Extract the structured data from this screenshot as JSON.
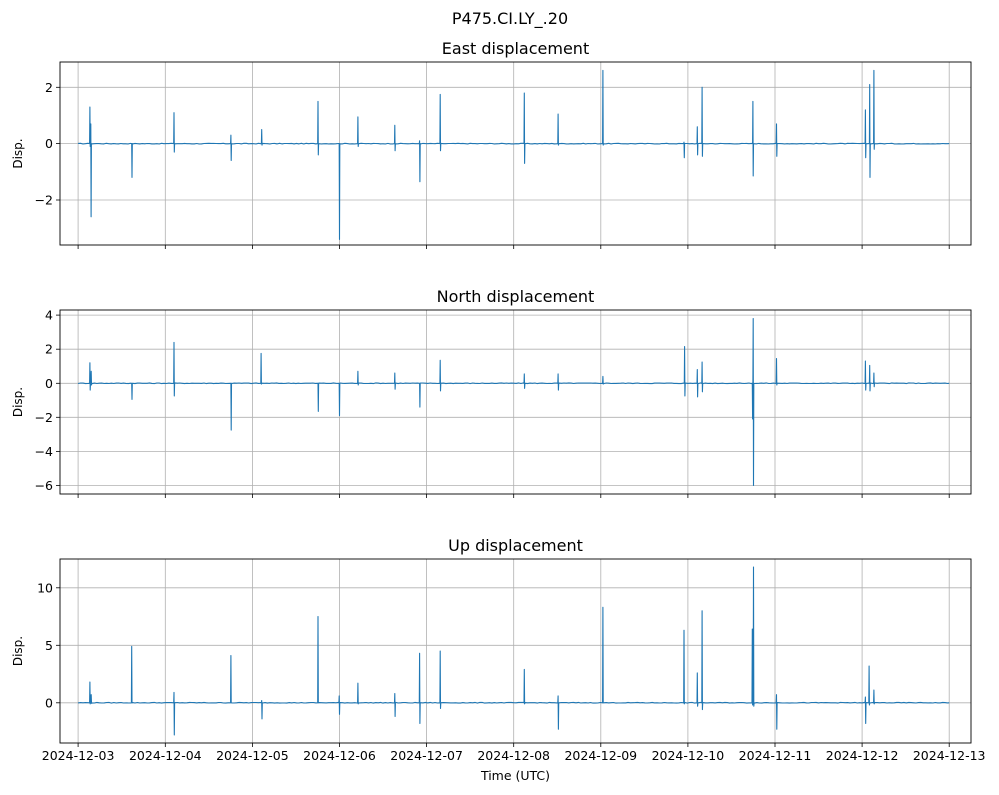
{
  "figure": {
    "title": "P475.CI.LY_.20",
    "line_color": "#1f77b4",
    "grid_color": "#b0b0b0"
  },
  "chart_data": [
    {
      "type": "line",
      "title": "East displacement",
      "xlabel": "",
      "ylabel": "Disp.",
      "grid": true,
      "xlim": [
        "2024-12-02T19:00",
        "2024-12-13T06:00"
      ],
      "ylim": [
        -3.6,
        2.9
      ],
      "yticks": [
        -2,
        0,
        2
      ],
      "ytick_labels": [
        "−2",
        "0",
        "2"
      ],
      "xticks": [
        "2024-12-03",
        "2024-12-04",
        "2024-12-05",
        "2024-12-06",
        "2024-12-07",
        "2024-12-08",
        "2024-12-09",
        "2024-12-10",
        "2024-12-11",
        "2024-12-12",
        "2024-12-13"
      ],
      "series": [
        {
          "x_start": "2024-12-03T00:00",
          "x_end": "2024-12-13T00:00",
          "baseline": 0.0,
          "events": [
            [
              "2024-12-03T03:10",
              1.3,
              -0.1
            ],
            [
              "2024-12-03T03:25",
              0.7,
              -2.6
            ],
            [
              "2024-12-03T14:40",
              0.0,
              -1.2
            ],
            [
              "2024-12-04T02:20",
              1.1,
              -0.3
            ],
            [
              "2024-12-04T18:00",
              0.3,
              -0.6
            ],
            [
              "2024-12-05T02:30",
              0.5,
              -0.05
            ],
            [
              "2024-12-05T18:00",
              1.5,
              -0.4
            ],
            [
              "2024-12-05T23:50",
              0.0,
              -3.4
            ],
            [
              "2024-12-06T05:00",
              0.95,
              -0.1
            ],
            [
              "2024-12-06T15:10",
              0.65,
              -0.25
            ],
            [
              "2024-12-06T22:00",
              0.1,
              -1.35
            ],
            [
              "2024-12-07T03:40",
              1.75,
              -0.25
            ],
            [
              "2024-12-08T02:50",
              1.8,
              -0.7
            ],
            [
              "2024-12-08T12:10",
              1.05,
              -0.05
            ],
            [
              "2024-12-09T00:30",
              2.6,
              -0.05
            ],
            [
              "2024-12-09T22:50",
              0.05,
              -0.5
            ],
            [
              "2024-12-10T02:30",
              0.6,
              -0.4
            ],
            [
              "2024-12-10T03:50",
              2.0,
              -0.45
            ],
            [
              "2024-12-10T17:50",
              1.5,
              -1.15
            ],
            [
              "2024-12-11T00:20",
              0.7,
              -0.45
            ],
            [
              "2024-12-12T00:50",
              1.2,
              -0.5
            ],
            [
              "2024-12-12T02:00",
              2.1,
              -1.2
            ],
            [
              "2024-12-12T03:10",
              2.6,
              -0.2
            ]
          ]
        }
      ]
    },
    {
      "type": "line",
      "title": "North displacement",
      "xlabel": "",
      "ylabel": "Disp.",
      "grid": true,
      "xlim": [
        "2024-12-02T19:00",
        "2024-12-13T06:00"
      ],
      "ylim": [
        -6.5,
        4.3
      ],
      "yticks": [
        -6,
        -4,
        -2,
        0,
        2,
        4
      ],
      "ytick_labels": [
        "−6",
        "−4",
        "−2",
        "0",
        "2",
        "4"
      ],
      "xticks": [
        "2024-12-03",
        "2024-12-04",
        "2024-12-05",
        "2024-12-06",
        "2024-12-07",
        "2024-12-08",
        "2024-12-09",
        "2024-12-10",
        "2024-12-11",
        "2024-12-12",
        "2024-12-13"
      ],
      "series": [
        {
          "x_start": "2024-12-03T00:00",
          "x_end": "2024-12-13T00:00",
          "baseline": 0.0,
          "events": [
            [
              "2024-12-03T03:10",
              1.2,
              -0.4
            ],
            [
              "2024-12-03T03:30",
              0.7,
              -0.1
            ],
            [
              "2024-12-03T14:40",
              0.0,
              -0.95
            ],
            [
              "2024-12-04T02:20",
              2.4,
              -0.75
            ],
            [
              "2024-12-04T18:00",
              0.0,
              -2.75
            ],
            [
              "2024-12-05T02:20",
              1.75,
              -0.05
            ],
            [
              "2024-12-05T18:00",
              0.0,
              -1.65
            ],
            [
              "2024-12-05T23:50",
              0.0,
              -1.9
            ],
            [
              "2024-12-06T05:00",
              0.7,
              -0.1
            ],
            [
              "2024-12-06T15:10",
              0.6,
              -0.35
            ],
            [
              "2024-12-06T22:00",
              0.0,
              -1.4
            ],
            [
              "2024-12-07T03:40",
              1.35,
              -0.45
            ],
            [
              "2024-12-08T02:50",
              0.55,
              -0.3
            ],
            [
              "2024-12-08T12:10",
              0.55,
              -0.4
            ],
            [
              "2024-12-09T00:30",
              0.4,
              -0.05
            ],
            [
              "2024-12-09T23:00",
              2.15,
              -0.75
            ],
            [
              "2024-12-10T02:30",
              0.8,
              -0.8
            ],
            [
              "2024-12-10T03:50",
              1.25,
              -0.5
            ],
            [
              "2024-12-10T17:40",
              0.0,
              -2.1
            ],
            [
              "2024-12-10T17:55",
              3.8,
              -6.0
            ],
            [
              "2024-12-11T00:20",
              1.45,
              -0.1
            ],
            [
              "2024-12-12T00:50",
              1.3,
              -0.4
            ],
            [
              "2024-12-12T02:00",
              1.05,
              -0.45
            ],
            [
              "2024-12-12T03:10",
              0.6,
              -0.2
            ]
          ]
        }
      ]
    },
    {
      "type": "line",
      "title": "Up displacement",
      "xlabel": "Time (UTC)",
      "ylabel": "Disp.",
      "grid": true,
      "xlim": [
        "2024-12-02T19:00",
        "2024-12-13T06:00"
      ],
      "ylim": [
        -3.5,
        12.5
      ],
      "yticks": [
        0,
        5,
        10
      ],
      "ytick_labels": [
        "0",
        "5",
        "10"
      ],
      "xticks": [
        "2024-12-03",
        "2024-12-04",
        "2024-12-05",
        "2024-12-06",
        "2024-12-07",
        "2024-12-08",
        "2024-12-09",
        "2024-12-10",
        "2024-12-11",
        "2024-12-12",
        "2024-12-13"
      ],
      "series": [
        {
          "x_start": "2024-12-03T00:00",
          "x_end": "2024-12-13T00:00",
          "baseline": 0.0,
          "events": [
            [
              "2024-12-03T03:10",
              1.8,
              -0.1
            ],
            [
              "2024-12-03T03:30",
              0.7,
              -0.05
            ],
            [
              "2024-12-03T14:40",
              4.9,
              0.0
            ],
            [
              "2024-12-04T02:20",
              0.9,
              -2.8
            ],
            [
              "2024-12-04T18:00",
              4.1,
              0.0
            ],
            [
              "2024-12-05T02:30",
              0.2,
              -1.4
            ],
            [
              "2024-12-05T18:00",
              7.5,
              0.0
            ],
            [
              "2024-12-05T23:50",
              0.6,
              -1.0
            ],
            [
              "2024-12-06T05:00",
              1.7,
              -0.1
            ],
            [
              "2024-12-06T15:10",
              0.8,
              -1.2
            ],
            [
              "2024-12-06T22:00",
              4.3,
              -1.8
            ],
            [
              "2024-12-07T03:40",
              4.5,
              -0.5
            ],
            [
              "2024-12-08T02:50",
              2.9,
              -0.1
            ],
            [
              "2024-12-08T12:10",
              0.6,
              -2.3
            ],
            [
              "2024-12-09T00:30",
              8.3,
              0.0
            ],
            [
              "2024-12-09T22:50",
              6.3,
              -0.1
            ],
            [
              "2024-12-10T02:30",
              2.6,
              -0.3
            ],
            [
              "2024-12-10T03:50",
              8.0,
              -0.6
            ],
            [
              "2024-12-10T17:40",
              6.4,
              -0.2
            ],
            [
              "2024-12-10T18:00",
              11.8,
              -0.3
            ],
            [
              "2024-12-11T00:20",
              0.7,
              -2.3
            ],
            [
              "2024-12-12T00:50",
              0.5,
              -1.8
            ],
            [
              "2024-12-12T01:50",
              3.2,
              -0.2
            ],
            [
              "2024-12-12T03:10",
              1.1,
              -0.1
            ]
          ]
        }
      ]
    }
  ]
}
